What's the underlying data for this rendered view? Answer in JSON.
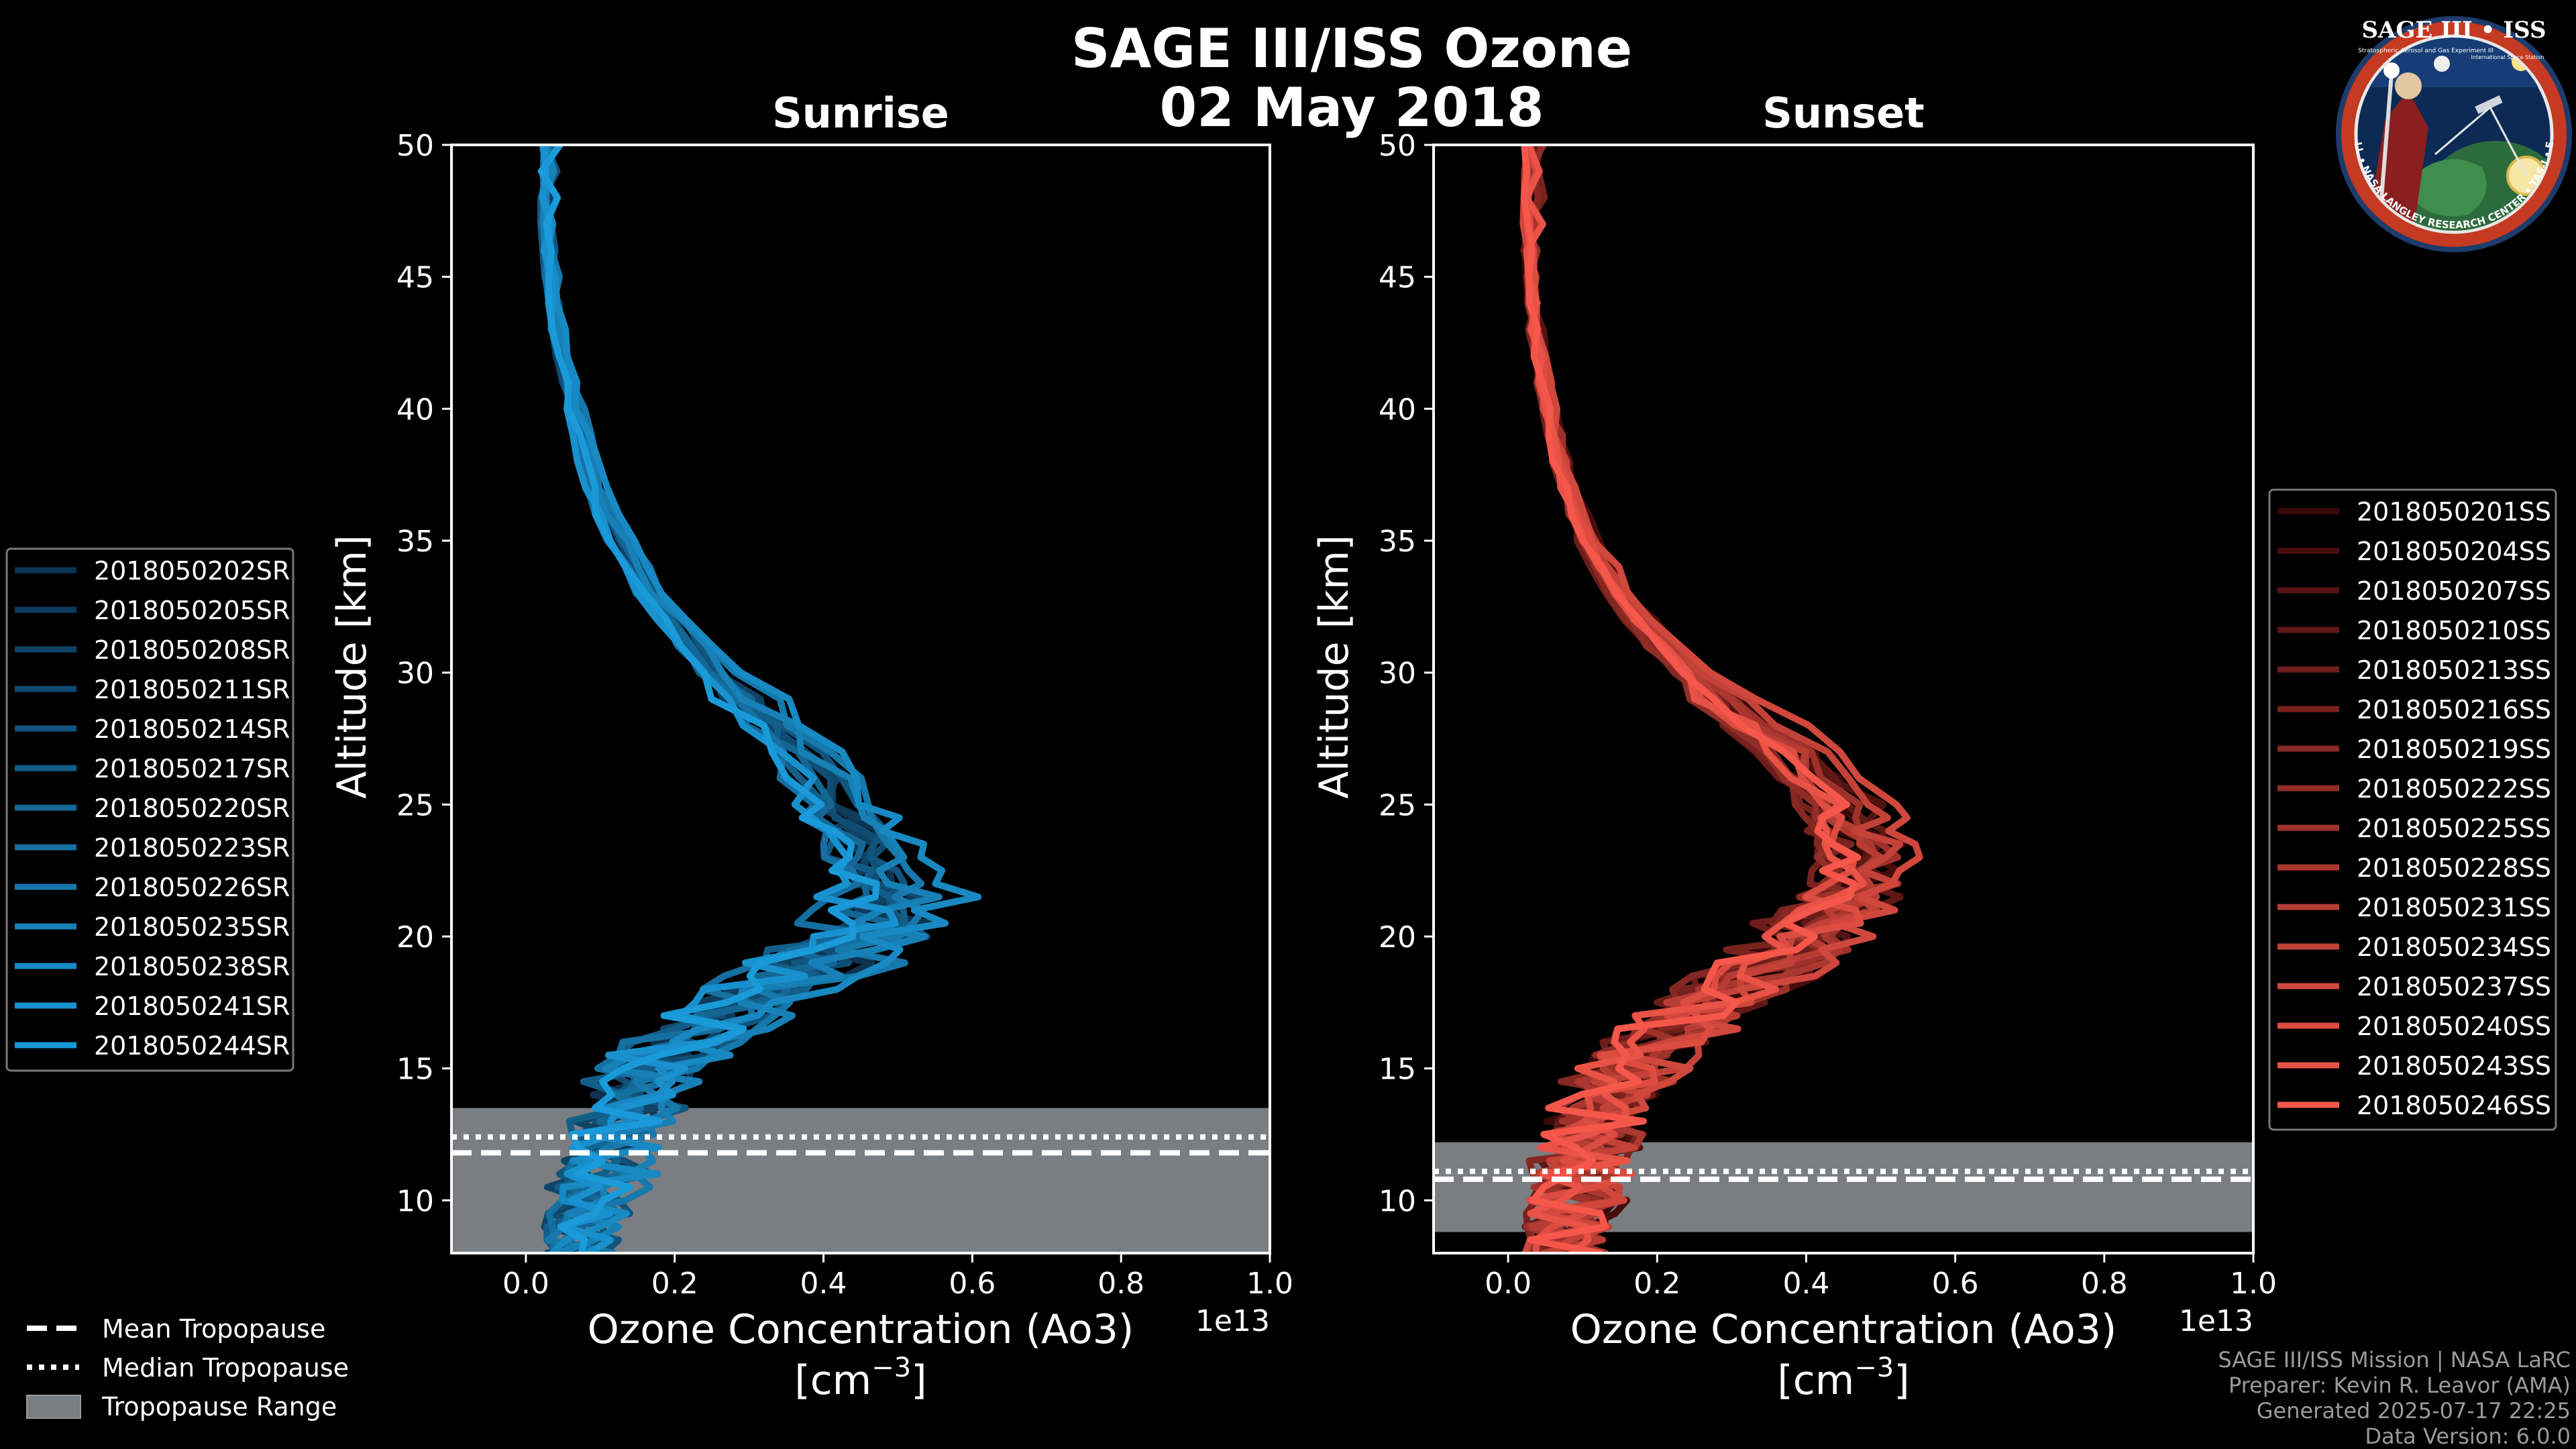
{
  "figure": {
    "title_line1": "SAGE III/ISS Ozone",
    "title_line2": "02 May 2018"
  },
  "colors": {
    "background": "#000000",
    "sunrise_light": "#1a9ad9",
    "sunrise_dark": "#0d3350",
    "sunset_light": "#f5574a",
    "sunset_dark": "#3a0808",
    "tropopause_range": "#7a7d82"
  },
  "chart_data": [
    {
      "type": "line",
      "title": "Sunrise",
      "xlabel_line1": "Ozone Concentration (Ao3)",
      "xlabel_unit": "[cm",
      "xlabel_exp": "−3",
      "xlabel_close": "]",
      "ylabel": "Altitude [km]",
      "offset_text": "1e13",
      "xlim": [
        -0.1,
        1.0
      ],
      "ylim": [
        8,
        50
      ],
      "xticks": [
        "0.0",
        "0.2",
        "0.4",
        "0.6",
        "0.8",
        "1.0"
      ],
      "yticks": [
        "10",
        "15",
        "20",
        "25",
        "30",
        "35",
        "40",
        "45",
        "50"
      ],
      "tropopause": {
        "mean": 11.8,
        "median": 12.4,
        "range": [
          8.0,
          13.5
        ]
      },
      "series_names": [
        "2018050202SR",
        "2018050205SR",
        "2018050208SR",
        "2018050211SR",
        "2018050214SR",
        "2018050217SR",
        "2018050220SR",
        "2018050223SR",
        "2018050226SR",
        "2018050235SR",
        "2018050238SR",
        "2018050241SR",
        "2018050244SR"
      ],
      "base_profile": {
        "alt": [
          8,
          9,
          10,
          11,
          12,
          13,
          14,
          15,
          16,
          17,
          18,
          19,
          20,
          21,
          22,
          23,
          24,
          25,
          26,
          27,
          28,
          29,
          30,
          31,
          32,
          33,
          34,
          35,
          36,
          37,
          38,
          39,
          40,
          41,
          42,
          43,
          44,
          45,
          46,
          47,
          48,
          49,
          50
        ],
        "ozone": [
          0.05,
          0.07,
          0.08,
          0.1,
          0.12,
          0.14,
          0.15,
          0.17,
          0.22,
          0.28,
          0.34,
          0.4,
          0.46,
          0.5,
          0.49,
          0.47,
          0.45,
          0.43,
          0.41,
          0.38,
          0.34,
          0.3,
          0.26,
          0.23,
          0.2,
          0.17,
          0.15,
          0.13,
          0.11,
          0.095,
          0.085,
          0.075,
          0.065,
          0.057,
          0.05,
          0.044,
          0.039,
          0.035,
          0.031,
          0.028,
          0.025,
          0.022,
          0.02
        ]
      }
    },
    {
      "type": "line",
      "title": "Sunset",
      "xlabel_line1": "Ozone Concentration (Ao3)",
      "xlabel_unit": "[cm",
      "xlabel_exp": "−3",
      "xlabel_close": "]",
      "ylabel": "Altitude [km]",
      "offset_text": "1e13",
      "xlim": [
        -0.1,
        1.0
      ],
      "ylim": [
        8,
        50
      ],
      "xticks": [
        "0.0",
        "0.2",
        "0.4",
        "0.6",
        "0.8",
        "1.0"
      ],
      "yticks": [
        "10",
        "15",
        "20",
        "25",
        "30",
        "35",
        "40",
        "45",
        "50"
      ],
      "tropopause": {
        "mean": 10.8,
        "median": 11.1,
        "range": [
          8.8,
          12.2
        ]
      },
      "series_names": [
        "2018050201SS",
        "2018050204SS",
        "2018050207SS",
        "2018050210SS",
        "2018050213SS",
        "2018050216SS",
        "2018050219SS",
        "2018050222SS",
        "2018050225SS",
        "2018050228SS",
        "2018050231SS",
        "2018050234SS",
        "2018050237SS",
        "2018050240SS",
        "2018050243SS",
        "2018050246SS"
      ],
      "base_profile": {
        "alt": [
          8,
          9,
          10,
          11,
          12,
          13,
          14,
          15,
          16,
          17,
          18,
          19,
          20,
          21,
          22,
          23,
          24,
          25,
          26,
          27,
          28,
          29,
          30,
          31,
          32,
          33,
          34,
          35,
          36,
          37,
          38,
          39,
          40,
          41,
          42,
          43,
          44,
          45,
          46,
          47,
          48,
          49,
          50
        ],
        "ozone": [
          0.06,
          0.07,
          0.09,
          0.1,
          0.11,
          0.12,
          0.14,
          0.17,
          0.2,
          0.25,
          0.31,
          0.37,
          0.42,
          0.45,
          0.47,
          0.48,
          0.47,
          0.45,
          0.42,
          0.38,
          0.34,
          0.29,
          0.25,
          0.21,
          0.18,
          0.15,
          0.13,
          0.11,
          0.095,
          0.082,
          0.072,
          0.063,
          0.055,
          0.048,
          0.043,
          0.038,
          0.034,
          0.031,
          0.028,
          0.025,
          0.023,
          0.021,
          0.019
        ]
      }
    }
  ],
  "legend_tropopause": {
    "mean": "Mean Tropopause",
    "median": "Median Tropopause",
    "range": "Tropopause Range"
  },
  "credits": {
    "line1": "SAGE III/ISS Mission | NASA LaRC",
    "line2": "Preparer: Kevin R. Leavor (AMA)",
    "line3": "Generated 2025-07-17 22:25",
    "line4": "Data Version: 6.0.0"
  },
  "logo": {
    "title": "SAGE III • ISS",
    "subtitle": "Stratospheric Aerosol and Gas Experiment III",
    "side": "International Space Station",
    "rim": "BALL • NASA LANGLEY RESEARCH CENTER • TAS-I • ESA"
  }
}
